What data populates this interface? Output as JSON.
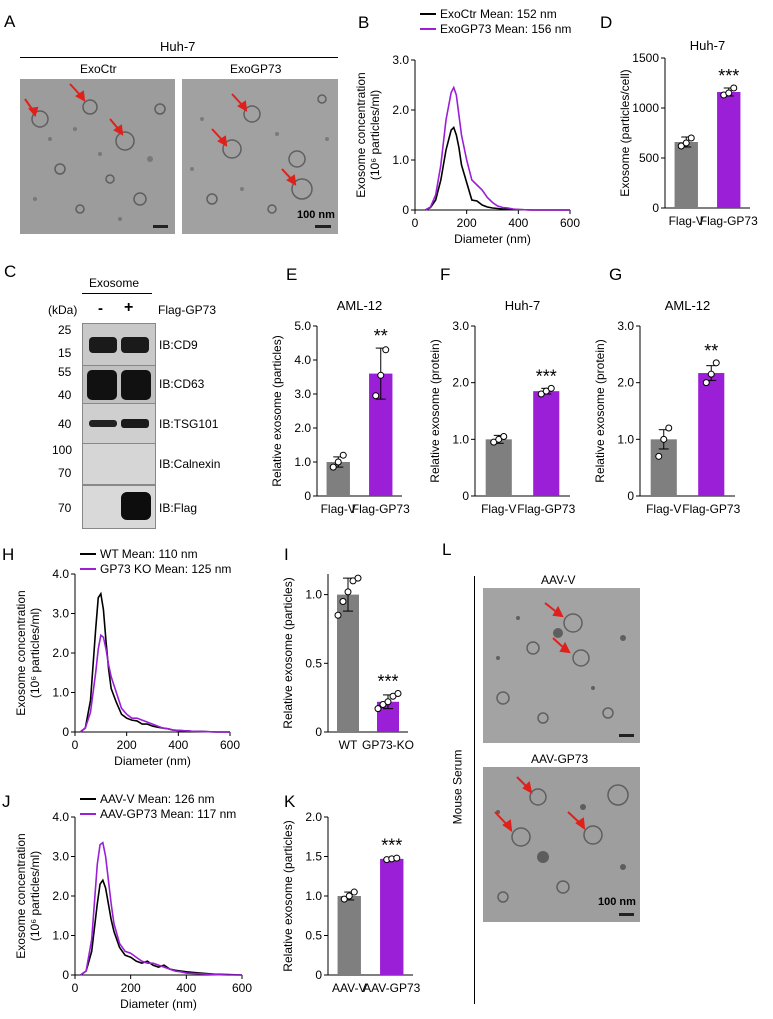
{
  "panels": {
    "A": {
      "letter": "A",
      "group_title": "Huh-7",
      "images": [
        {
          "label": "ExoCtr",
          "scale_bar": ""
        },
        {
          "label": "ExoGP73",
          "scale_bar": "100 nm"
        }
      ]
    },
    "C": {
      "letter": "C",
      "header": "Exosome",
      "kda_label": "(kDa)",
      "treatment_label": "Flag-GP73",
      "lanes": [
        "-",
        "+"
      ],
      "blots": [
        {
          "markers": [
            "25",
            "15"
          ],
          "label": "IB:CD9"
        },
        {
          "markers": [
            "55",
            "40"
          ],
          "label": "IB:CD63"
        },
        {
          "markers": [
            "40"
          ],
          "label": "IB:TSG101"
        },
        {
          "markers": [
            "100",
            "70"
          ],
          "label": "IB:Calnexin"
        },
        {
          "markers": [
            "70"
          ],
          "label": "IB:Flag"
        }
      ]
    },
    "L": {
      "letter": "L",
      "side_label": "Mouse Serum",
      "images": [
        {
          "label": "AAV-V",
          "scale_bar": ""
        },
        {
          "label": "AAV-GP73",
          "scale_bar": "100 nm"
        }
      ]
    }
  },
  "colors": {
    "purple": "#9b1fd6",
    "black": "#000000",
    "gray": "#7f7f7f",
    "arrow": "#e0201b"
  },
  "chart_data": [
    {
      "id": "B",
      "letter": "B",
      "type": "line",
      "xlabel": "Diameter (nm)",
      "ylabel": "Exosome concentration",
      "ylabel2": "(10⁶ particles/ml)",
      "xlim": [
        0,
        600
      ],
      "ylim": [
        0,
        3.0
      ],
      "xticks": [
        "0",
        "200",
        "400",
        "600"
      ],
      "yticks": [
        "0",
        "1.0",
        "2.0",
        "3.0"
      ],
      "series": [
        {
          "name": "ExoCtr Mean: 152 nm",
          "color": "#000000",
          "x": [
            40,
            60,
            80,
            100,
            120,
            140,
            150,
            160,
            170,
            180,
            200,
            220,
            240,
            260,
            280,
            300,
            320,
            340,
            360,
            380,
            400,
            450,
            500,
            550,
            600
          ],
          "y": [
            0,
            0.05,
            0.2,
            0.6,
            1.2,
            1.6,
            1.65,
            1.5,
            1.25,
            0.9,
            0.55,
            0.2,
            0.18,
            0.1,
            0.06,
            0.04,
            0.03,
            0.02,
            0.02,
            0.01,
            0.01,
            0,
            0,
            0,
            0
          ]
        },
        {
          "name": "ExoGP73 Mean: 156 nm",
          "color": "#9b1fd6",
          "x": [
            40,
            60,
            80,
            100,
            120,
            140,
            150,
            160,
            170,
            180,
            200,
            220,
            240,
            260,
            280,
            300,
            320,
            340,
            360,
            380,
            400,
            450,
            500,
            550,
            600
          ],
          "y": [
            0,
            0.06,
            0.3,
            0.9,
            1.8,
            2.35,
            2.45,
            2.3,
            1.9,
            1.5,
            1.0,
            0.6,
            0.5,
            0.4,
            0.25,
            0.15,
            0.08,
            0.05,
            0.04,
            0.02,
            0.01,
            0,
            0,
            0,
            0
          ]
        }
      ]
    },
    {
      "id": "D",
      "letter": "D",
      "type": "bar",
      "title": "Huh-7",
      "ylabel": "Exosome (particles/cell)",
      "ylim": [
        0,
        1500
      ],
      "yticks": [
        "0",
        "500",
        "1000",
        "1500"
      ],
      "categories": [
        "Flag-V",
        "Flag-GP73"
      ],
      "values": [
        660,
        1160
      ],
      "errors": [
        50,
        40
      ],
      "points": [
        [
          620,
          650,
          700
        ],
        [
          1130,
          1150,
          1200
        ]
      ],
      "sig": "***"
    },
    {
      "id": "E",
      "letter": "E",
      "type": "bar",
      "title": "AML-12",
      "ylabel": "Relative exosome (particles)",
      "ylim": [
        0,
        5.0
      ],
      "yticks": [
        "0",
        "1.0",
        "2.0",
        "3.0",
        "4.0",
        "5.0"
      ],
      "categories": [
        "Flag-V",
        "Flag-GP73"
      ],
      "values": [
        1.0,
        3.6
      ],
      "errors": [
        0.15,
        0.75
      ],
      "points": [
        [
          0.85,
          1.0,
          1.2
        ],
        [
          2.95,
          3.55,
          4.3
        ]
      ],
      "sig": "**"
    },
    {
      "id": "F",
      "letter": "F",
      "type": "bar",
      "title": "Huh-7",
      "ylabel": "Relative exosome (protein)",
      "ylim": [
        0,
        3.0
      ],
      "yticks": [
        "0",
        "1.0",
        "2.0",
        "3.0"
      ],
      "categories": [
        "Flag-V",
        "Flag-GP73"
      ],
      "values": [
        1.0,
        1.85
      ],
      "errors": [
        0.07,
        0.05
      ],
      "points": [
        [
          0.95,
          1.0,
          1.05
        ],
        [
          1.8,
          1.85,
          1.9
        ]
      ],
      "sig": "***"
    },
    {
      "id": "G",
      "letter": "G",
      "type": "bar",
      "title": "AML-12",
      "ylabel": "Relative exosome (protein)",
      "ylim": [
        0,
        3.0
      ],
      "yticks": [
        "0",
        "1.0",
        "2.0",
        "3.0"
      ],
      "categories": [
        "Flag-V",
        "Flag-GP73"
      ],
      "values": [
        1.0,
        2.17
      ],
      "errors": [
        0.17,
        0.13
      ],
      "points": [
        [
          0.7,
          1.0,
          1.2
        ],
        [
          2.0,
          2.15,
          2.35
        ]
      ],
      "sig": "**"
    },
    {
      "id": "H",
      "letter": "H",
      "type": "line",
      "xlabel": "Diameter (nm)",
      "ylabel": "Exosome concentration",
      "ylabel2": "(10⁶ particles/ml)",
      "xlim": [
        0,
        600
      ],
      "ylim": [
        0,
        4.0
      ],
      "xticks": [
        "0",
        "200",
        "400",
        "600"
      ],
      "yticks": [
        "0",
        "1.0",
        "2.0",
        "3.0",
        "4.0"
      ],
      "series": [
        {
          "name": "WT Mean: 110 nm",
          "color": "#000000",
          "x": [
            20,
            40,
            60,
            80,
            90,
            100,
            110,
            120,
            130,
            140,
            160,
            180,
            200,
            220,
            240,
            260,
            280,
            300,
            320,
            340,
            360,
            380,
            400,
            450,
            500,
            550,
            600
          ],
          "y": [
            0,
            0.1,
            0.8,
            2.6,
            3.4,
            3.5,
            3.1,
            2.3,
            1.6,
            1.1,
            0.75,
            0.45,
            0.35,
            0.3,
            0.28,
            0.2,
            0.2,
            0.15,
            0.12,
            0.1,
            0.08,
            0.05,
            0.04,
            0.02,
            0.01,
            0,
            0
          ]
        },
        {
          "name": "GP73 KO Mean: 125 nm",
          "color": "#9b1fd6",
          "x": [
            20,
            40,
            60,
            80,
            90,
            100,
            110,
            120,
            130,
            140,
            160,
            180,
            200,
            220,
            240,
            260,
            280,
            300,
            320,
            340,
            360,
            380,
            400,
            450,
            500,
            550,
            600
          ],
          "y": [
            0,
            0.1,
            0.5,
            1.5,
            2.1,
            2.45,
            2.4,
            2.1,
            1.7,
            1.4,
            1.0,
            0.6,
            0.45,
            0.35,
            0.35,
            0.3,
            0.25,
            0.2,
            0.15,
            0.1,
            0.08,
            0.05,
            0.04,
            0.02,
            0.01,
            0,
            0
          ]
        }
      ]
    },
    {
      "id": "I",
      "letter": "I",
      "type": "bar",
      "ylabel": "Relative exosome (particles)",
      "ylim": [
        0,
        1.15
      ],
      "yticks": [
        "0",
        "0.5",
        "1.0"
      ],
      "categories": [
        "WT",
        "GP73-KO"
      ],
      "values": [
        1.0,
        0.22
      ],
      "errors": [
        0.12,
        0.05
      ],
      "points": [
        [
          0.85,
          0.95,
          1.02,
          1.1,
          1.12
        ],
        [
          0.17,
          0.2,
          0.22,
          0.26,
          0.28
        ]
      ],
      "sig": "***"
    },
    {
      "id": "J",
      "letter": "J",
      "type": "line",
      "xlabel": "Diameter (nm)",
      "ylabel": "Exosome concentration",
      "ylabel2": "(10⁶ particles/ml)",
      "xlim": [
        0,
        600
      ],
      "ylim": [
        0,
        4.0
      ],
      "xticks": [
        "0",
        "200",
        "400",
        "600"
      ],
      "yticks": [
        "0",
        "1.0",
        "2.0",
        "3.0",
        "4.0"
      ],
      "series": [
        {
          "name": "AAV-V Mean: 126 nm",
          "color": "#000000",
          "x": [
            20,
            40,
            60,
            80,
            90,
            100,
            110,
            120,
            130,
            140,
            160,
            180,
            200,
            220,
            240,
            260,
            280,
            300,
            320,
            340,
            360,
            380,
            400,
            450,
            500,
            550,
            600
          ],
          "y": [
            0,
            0.1,
            0.6,
            1.8,
            2.3,
            2.4,
            2.2,
            1.8,
            1.4,
            1.1,
            0.7,
            0.5,
            0.45,
            0.35,
            0.3,
            0.35,
            0.25,
            0.2,
            0.25,
            0.15,
            0.12,
            0.1,
            0.08,
            0.05,
            0.02,
            0.01,
            0
          ]
        },
        {
          "name": "AAV-GP73 Mean: 117 nm",
          "color": "#9b1fd6",
          "x": [
            20,
            40,
            60,
            80,
            90,
            100,
            110,
            120,
            130,
            140,
            160,
            180,
            200,
            220,
            240,
            260,
            280,
            300,
            320,
            340,
            360,
            380,
            400,
            450,
            500,
            550,
            600
          ],
          "y": [
            0,
            0.1,
            0.9,
            2.8,
            3.3,
            3.35,
            3.0,
            2.4,
            1.8,
            1.3,
            0.8,
            0.6,
            0.55,
            0.45,
            0.35,
            0.3,
            0.3,
            0.25,
            0.2,
            0.15,
            0.1,
            0.08,
            0.05,
            0.03,
            0.01,
            0,
            0
          ]
        }
      ]
    },
    {
      "id": "K",
      "letter": "K",
      "type": "bar",
      "ylabel": "Relative exosome (particles)",
      "ylim": [
        0,
        2.0
      ],
      "yticks": [
        "0",
        "0.5",
        "1.0",
        "1.5",
        "2.0"
      ],
      "categories": [
        "AAV-V",
        "AAV-GP73"
      ],
      "values": [
        1.0,
        1.47
      ],
      "errors": [
        0.05,
        0.02
      ],
      "points": [
        [
          0.96,
          1.0,
          1.05
        ],
        [
          1.46,
          1.47,
          1.48
        ]
      ],
      "sig": "***"
    }
  ]
}
